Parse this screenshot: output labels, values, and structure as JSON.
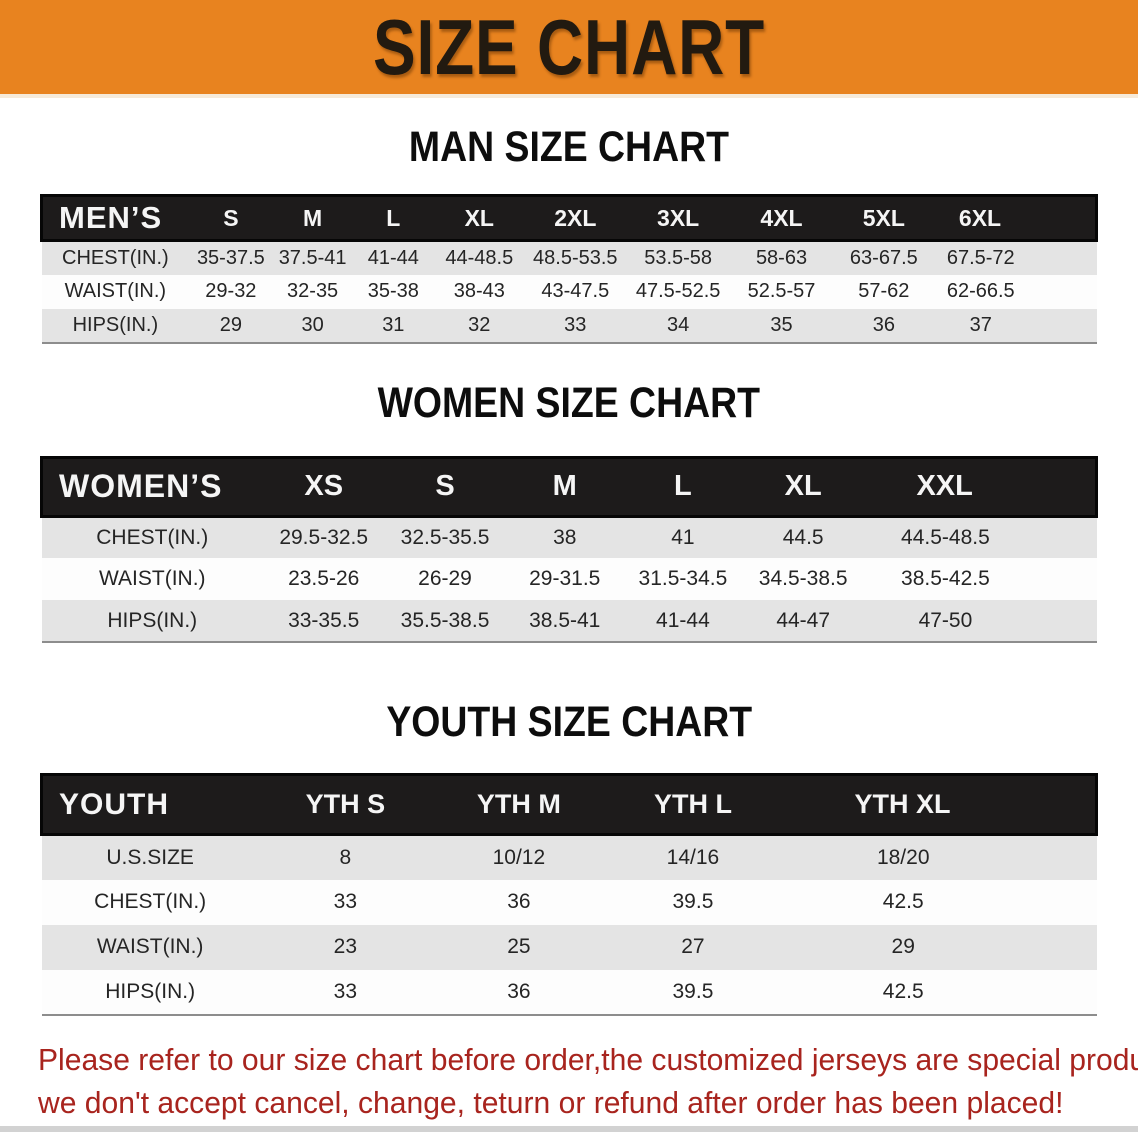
{
  "banner": {
    "title": "SIZE CHART"
  },
  "colors": {
    "banner_bg": "#e8831f",
    "header_bar_bg": "#1d1b1b",
    "row_gray": "#e4e4e4",
    "note_red": "#a8241e"
  },
  "sections": [
    {
      "heading": "MAN SIZE CHART",
      "label_header": "MEN’S",
      "size_headers": [
        "S",
        "M",
        "L",
        "XL",
        "2XL",
        "3XL",
        "4XL",
        "5XL",
        "6XL"
      ],
      "rows": [
        {
          "label": "CHEST(IN.)",
          "values": [
            "35-37.5",
            "37.5-41",
            "41-44",
            "44-48.5",
            "48.5-53.5",
            "53.5-58",
            "58-63",
            "63-67.5",
            "67.5-72"
          ]
        },
        {
          "label": "WAIST(IN.)",
          "values": [
            "29-32",
            "32-35",
            "35-38",
            "38-43",
            "43-47.5",
            "47.5-52.5",
            "52.5-57",
            "57-62",
            "62-66.5"
          ]
        },
        {
          "label": "HIPS(IN.)",
          "values": [
            "29",
            "30",
            "31",
            "32",
            "33",
            "34",
            "35",
            "36",
            "37"
          ]
        }
      ]
    },
    {
      "heading": "WOMEN SIZE CHART",
      "label_header": "WOMEN’S",
      "size_headers": [
        "XS",
        "S",
        "M",
        "L",
        "XL",
        "XXL"
      ],
      "rows": [
        {
          "label": "CHEST(IN.)",
          "values": [
            "29.5-32.5",
            "32.5-35.5",
            "38",
            "41",
            "44.5",
            "44.5-48.5"
          ]
        },
        {
          "label": "WAIST(IN.)",
          "values": [
            "23.5-26",
            "26-29",
            "29-31.5",
            "31.5-34.5",
            "34.5-38.5",
            "38.5-42.5"
          ]
        },
        {
          "label": "HIPS(IN.)",
          "values": [
            "33-35.5",
            "35.5-38.5",
            "38.5-41",
            "41-44",
            "44-47",
            "47-50"
          ]
        }
      ]
    },
    {
      "heading": "YOUTH SIZE CHART",
      "label_header": "YOUTH",
      "size_headers": [
        "YTH S",
        "YTH M",
        "YTH L",
        "YTH XL"
      ],
      "rows": [
        {
          "label": "U.S.SIZE",
          "values": [
            "8",
            "10/12",
            "14/16",
            "18/20"
          ]
        },
        {
          "label": "CHEST(IN.)",
          "values": [
            "33",
            "36",
            "39.5",
            "42.5"
          ]
        },
        {
          "label": "WAIST(IN.)",
          "values": [
            "23",
            "25",
            "27",
            "29"
          ]
        },
        {
          "label": "HIPS(IN.)",
          "values": [
            "33",
            "36",
            "39.5",
            "42.5"
          ]
        }
      ]
    }
  ],
  "note": {
    "line1": "Please refer to our size chart before order,the customized jerseys are special products,",
    "line2": "we don't accept cancel, change, teturn or refund after order has been placed!"
  }
}
